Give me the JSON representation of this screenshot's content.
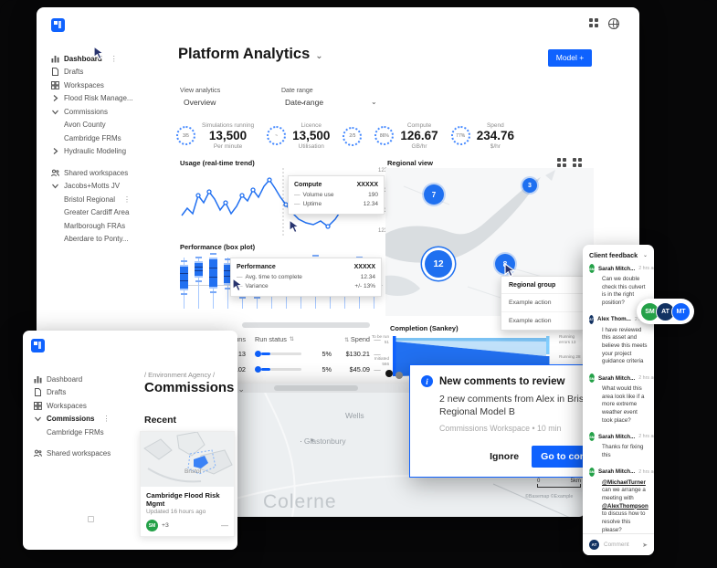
{
  "chrome": {
    "top_icons": [
      {
        "name": "app-grid"
      },
      {
        "name": "globe"
      }
    ]
  },
  "main_window": {
    "header": {
      "title": "Platform Analytics",
      "model_button": "Model +"
    },
    "filters": {
      "view_label": "View analytics",
      "view_value": "Overview",
      "date_label": "Date range",
      "date_value": "Date range"
    },
    "sidebar": {
      "sections": [
        {
          "items": [
            {
              "label": "Dashboard",
              "icon": "dashboard",
              "active": true,
              "kebab": true
            },
            {
              "label": "Drafts",
              "icon": "document"
            },
            {
              "label": "Workspaces",
              "icon": "grid"
            },
            {
              "label": "Flood Risk Manage...",
              "chevron": "right"
            },
            {
              "label": "Commissions",
              "chevron": "down"
            },
            {
              "label": "Avon County",
              "indent": true
            },
            {
              "label": "Cambridge FRMs",
              "indent": true
            },
            {
              "label": "Hydraulic Modeling",
              "chevron": "right"
            }
          ]
        },
        {
          "items": [
            {
              "label": "Shared workspaces",
              "icon": "people"
            },
            {
              "label": "Jacobs+Motts JV",
              "chevron": "down"
            },
            {
              "label": "Bristol Regional",
              "indent": true,
              "kebab": true
            },
            {
              "label": "Greater Cardiff Area",
              "indent": true
            },
            {
              "label": "Marlborough FRAs",
              "indent": true
            },
            {
              "label": "Aberdare to Ponty...",
              "indent": true
            }
          ]
        }
      ]
    },
    "kpis": [
      {
        "gauge": "3/5",
        "label": "Simulations running",
        "value": "13,500",
        "sub": "Per minute"
      },
      {
        "gauge": "~",
        "label": "Licence",
        "value": "13,500",
        "sub": "Utilisation"
      },
      {
        "gauge": "2/5",
        "label": "",
        "value": "",
        "sub": ""
      },
      {
        "gauge": "86%",
        "label": "Compute",
        "value": "126.67",
        "sub": "GB/hr"
      },
      {
        "gauge": "77%",
        "label": "Spend",
        "value": "234.76",
        "sub": "$/hr"
      }
    ],
    "usage": {
      "title": "Usage (real-time trend)",
      "y_ticks": [
        "123",
        "123",
        "123",
        "123"
      ],
      "tooltip": {
        "title": "Compute",
        "value": "XXXXX",
        "rows": [
          {
            "label": "Volume use",
            "value": "190"
          },
          {
            "label": "Uptime",
            "value": "12.34"
          }
        ]
      }
    },
    "regional": {
      "title": "Regional view",
      "markers": [
        {
          "count": "7"
        },
        {
          "count": "3"
        },
        {
          "count": "12"
        },
        {
          "count": "8"
        }
      ],
      "menu": {
        "title": "Regional group",
        "items": [
          "Example action",
          "Example action"
        ]
      }
    },
    "performance": {
      "title": "Performance (box plot)",
      "tooltip": {
        "title": "Performance",
        "value": "XXXXX",
        "rows": [
          {
            "label": "Avg. time to complete",
            "value": "12.34"
          },
          {
            "label": "Variance",
            "value": "+/- 13%"
          }
        ]
      },
      "boxes": [
        [
          14,
          28
        ],
        [
          10,
          18
        ],
        [
          6,
          34
        ],
        [
          12,
          24
        ],
        [
          20,
          26
        ],
        [
          22,
          24
        ],
        [
          24,
          18
        ],
        [
          26,
          10
        ],
        [
          16,
          26
        ],
        [
          8,
          30
        ],
        [
          12,
          28
        ],
        [
          18,
          24
        ],
        [
          10,
          32
        ],
        [
          14,
          26
        ]
      ]
    },
    "sankey": {
      "title": "Completion (Sankey)",
      "left_top": "To be run",
      "left_top_value": "51",
      "left_bottom": "Initiated",
      "left_bottom_value": "566",
      "right_top": "Running errors 13",
      "right_bottom": "Running 28"
    }
  },
  "models_window": {
    "label": "Models",
    "table": {
      "col_runs": "Runs",
      "col_status": "Run status",
      "col_spend": "Spend",
      "rows": [
        {
          "runs": "13",
          "pct": "5%",
          "spend": "$130.21"
        },
        {
          "runs": "102",
          "pct": "5%",
          "spend": "$45.09"
        }
      ]
    }
  },
  "commissions_window": {
    "sidebar": {
      "items": [
        {
          "label": "Dashboard",
          "icon": "dashboard"
        },
        {
          "label": "Drafts",
          "icon": "document"
        },
        {
          "label": "Workspaces",
          "icon": "grid"
        },
        {
          "label": "Commissions",
          "chevron": "down",
          "active": true,
          "kebab": true
        },
        {
          "label": "Cambridge FRMs",
          "indent": true
        },
        {
          "label": "Shared workspaces",
          "icon": "people",
          "gap_before": true
        }
      ]
    },
    "breadcrumb": "/ Environment Agency /",
    "title": "Commissions",
    "recent_label": "Recent",
    "card": {
      "place": "Bristol",
      "title": "Cambridge Flood Risk Mgmt",
      "updated": "Updated 16 hours ago",
      "avatar": "SM",
      "extra": "+3"
    }
  },
  "map_window": {
    "places": [
      {
        "name": "Wells"
      },
      {
        "name": "Glastonbury",
        "dot": true
      },
      {
        "name": "Colerne",
        "large": true
      }
    ],
    "scale_start": "0",
    "scale_end": "5km",
    "attribution": "©Basemap ©Example"
  },
  "notification": {
    "title": "New comments to review",
    "body": "2 new comments from Alex in Bristol Regional Model B",
    "meta": "Commissions Workspace  •  10 min",
    "ignore_label": "Ignore",
    "action_label": "Go to comments"
  },
  "feedback": {
    "title": "Client feedback",
    "comments": [
      {
        "initials": "SM",
        "color": "green",
        "name": "Sarah Mitch...",
        "time": "2 hrs ago",
        "text": "Can we double check this culvert is in the right position?"
      },
      {
        "initials": "AT",
        "color": "navy",
        "name": "Alex Thom...",
        "time": "2 hrs ago",
        "text": "I have reviewed this asset and believe this meets your project guidance criteria"
      },
      {
        "initials": "SM",
        "color": "green",
        "name": "Sarah Mitch...",
        "time": "2 hrs ago",
        "text": "What would this area look like if a more extreme weather event took place?"
      },
      {
        "initials": "SM",
        "color": "green",
        "name": "Sarah Mitch...",
        "time": "2 hrs ago",
        "text": "Thanks for fixing this"
      },
      {
        "initials": "SM",
        "color": "green",
        "name": "Sarah Mitch...",
        "time": "2 hrs ago",
        "text": "@MichaelTurner can we arrange a meeting with @AlexThompson to discuss how to resolve this please?"
      }
    ],
    "composer": {
      "initials": "AT",
      "placeholder": "Comment"
    }
  },
  "avatar_pills": [
    {
      "initials": "SM",
      "color": "green"
    },
    {
      "initials": "AT",
      "color": "navy"
    },
    {
      "initials": "MT",
      "color": "blue"
    }
  ],
  "colors": {
    "accent": "#0f62fe",
    "green": "#24a148",
    "navy": "#123262",
    "light_blue": "#a6c8ff"
  }
}
